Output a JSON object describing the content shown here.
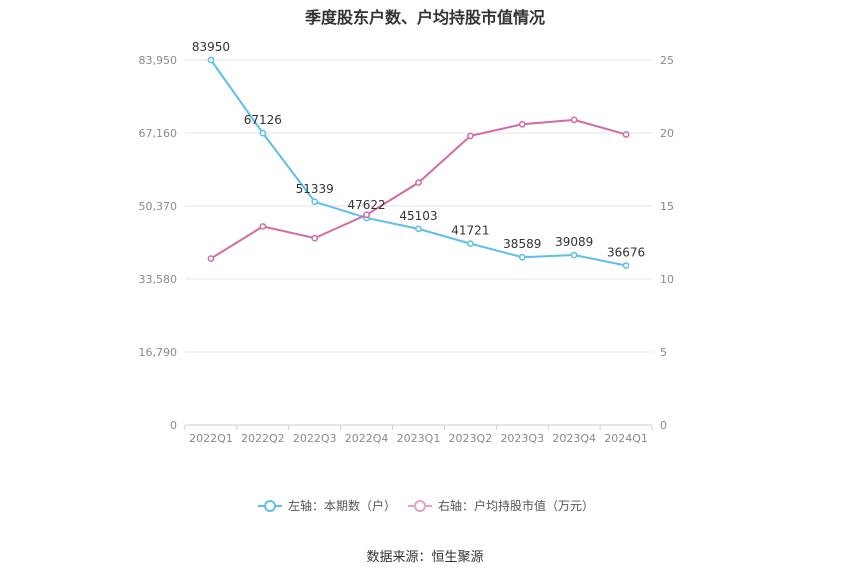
{
  "title": "季度股东户数、户均持股市值情况",
  "source": "数据来源：恒生聚源",
  "chart_data": {
    "type": "line",
    "categories": [
      "2022Q1",
      "2022Q2",
      "2022Q3",
      "2022Q4",
      "2023Q1",
      "2023Q2",
      "2023Q3",
      "2023Q4",
      "2024Q1"
    ],
    "series": [
      {
        "name": "左轴：本期数（户）",
        "axis": "left",
        "color": "#5bc0eb",
        "values": [
          83950,
          67126,
          51339,
          47622,
          45103,
          41721,
          38589,
          39089,
          36676
        ],
        "labels": [
          "83950",
          "67126",
          "51339",
          "47622",
          "45103",
          "41721",
          "38589",
          "39089",
          "36676"
        ]
      },
      {
        "name": "右轴：户均持股市值（万元）",
        "axis": "right",
        "color": "#d16ba5",
        "legend_color": "#e8a0c8",
        "values": [
          11.4,
          13.6,
          12.8,
          14.4,
          16.6,
          19.8,
          20.6,
          20.9,
          19.9
        ]
      }
    ],
    "left_axis": {
      "min": 0,
      "max": 83950,
      "ticks": [
        "0",
        "16,790",
        "33,580",
        "50,370",
        "67,160",
        "83,950"
      ]
    },
    "right_axis": {
      "min": 0,
      "max": 25,
      "ticks": [
        "0",
        "5",
        "10",
        "15",
        "20",
        "25"
      ]
    },
    "grid": true,
    "legend_position": "bottom"
  }
}
